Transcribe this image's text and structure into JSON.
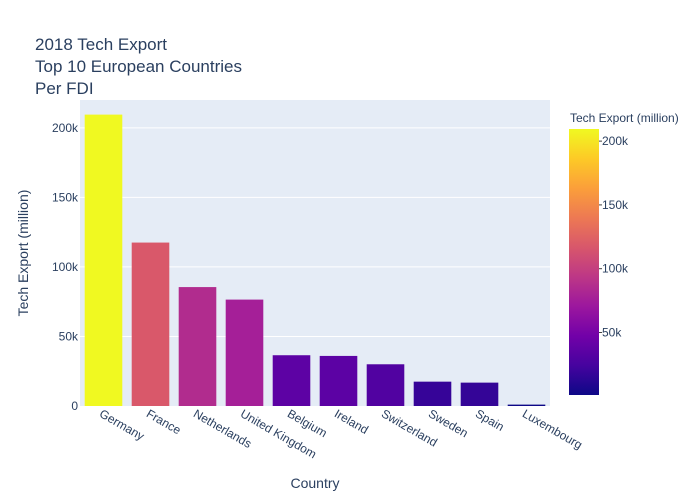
{
  "chart_data": {
    "type": "bar",
    "title_lines": [
      "2018 Tech Export",
      "Top 10 European Countries",
      "Per FDI"
    ],
    "xlabel": "Country",
    "ylabel": "Tech Export (million)",
    "categories": [
      "Germany",
      "France",
      "Netherlands",
      "United Kingdom",
      "Belgium",
      "Ireland",
      "Switzerland",
      "Sweden",
      "Spain",
      "Luxembourg"
    ],
    "values": [
      209500,
      117500,
      85500,
      76500,
      36500,
      36000,
      30000,
      17500,
      16800,
      1000
    ],
    "ylim": [
      0,
      220000
    ],
    "yticks": [
      0,
      50000,
      100000,
      150000,
      200000
    ],
    "ytick_labels": [
      "0",
      "50k",
      "100k",
      "150k",
      "200k"
    ],
    "grid": true,
    "colorbar": {
      "title": "Tech Export (million)",
      "range": [
        1000,
        209500
      ],
      "ticks": [
        50000,
        100000,
        150000,
        200000
      ],
      "tick_labels": [
        "50k",
        "100k",
        "150k",
        "200k"
      ],
      "colorscale": [
        "#0d0887",
        "#46039f",
        "#7201a8",
        "#9c179e",
        "#bd3786",
        "#d8576b",
        "#ed7953",
        "#fb9f3a",
        "#fdca26",
        "#f0f921"
      ]
    }
  }
}
